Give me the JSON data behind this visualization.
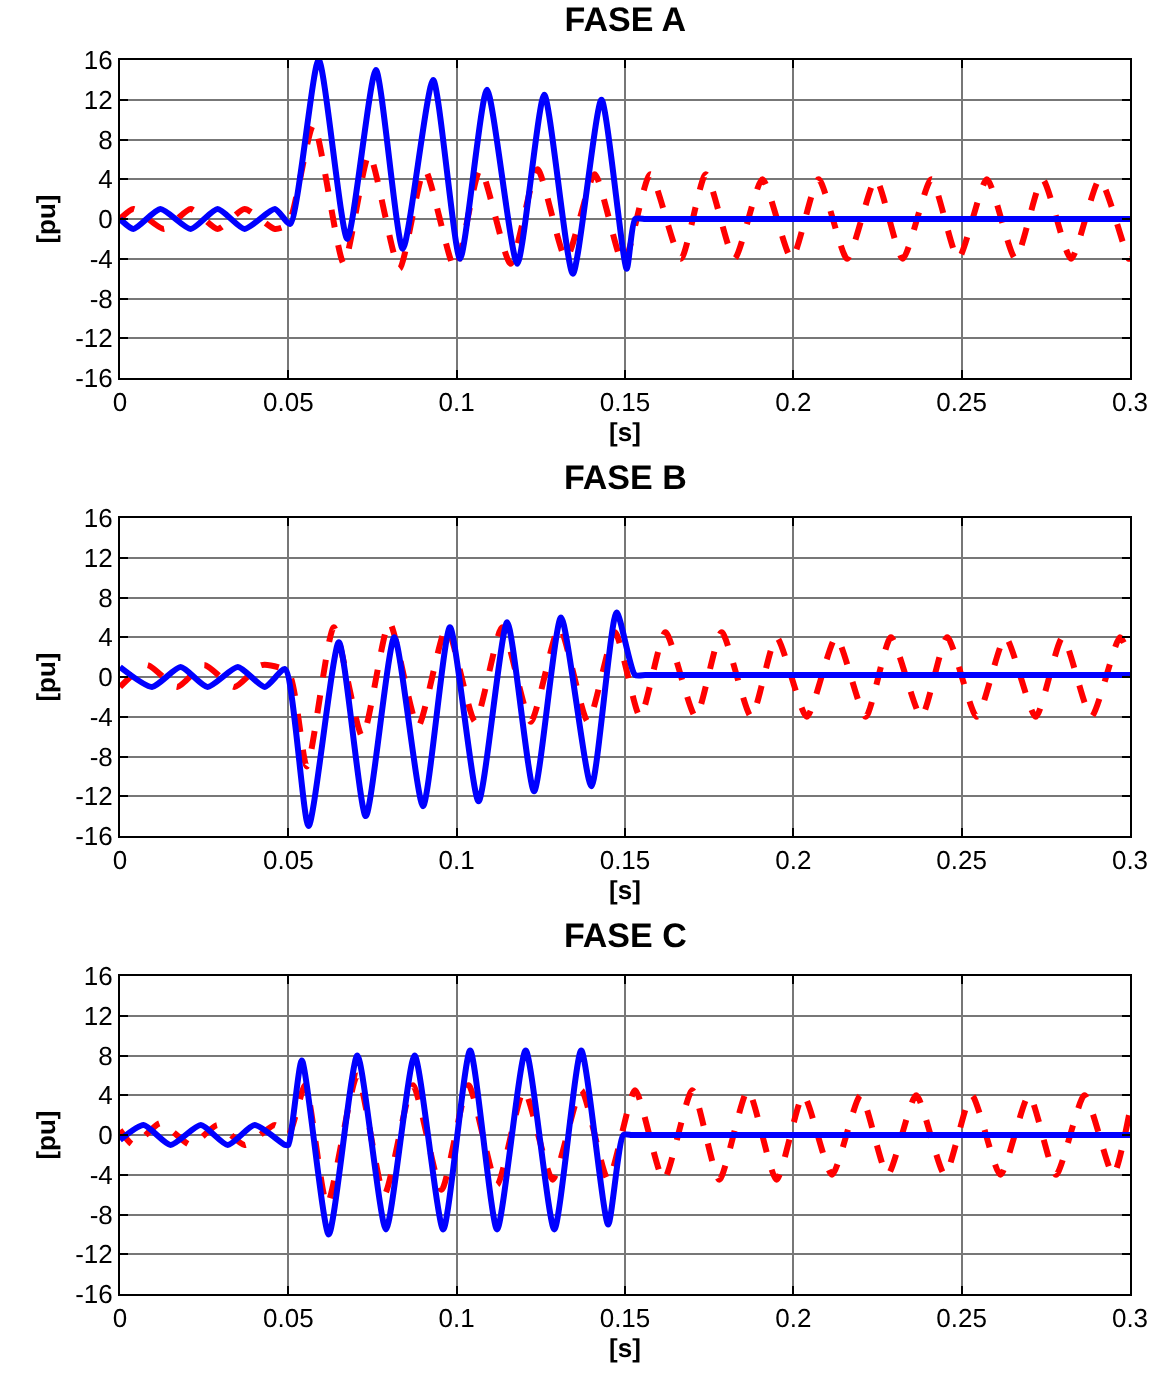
{
  "chart_data": [
    {
      "type": "line",
      "title": "FASE A",
      "xlabel": "[s]",
      "ylabel": "[pu]",
      "xlim": [
        0,
        0.3
      ],
      "xticks": [
        0,
        0.05,
        0.1,
        0.15,
        0.2,
        0.25,
        0.3
      ],
      "ylim": [
        -16,
        16
      ],
      "yticks": [
        -16,
        -12,
        -8,
        -4,
        0,
        4,
        8,
        12,
        16
      ],
      "grid": true,
      "series": [
        {
          "color": "#ff0000",
          "line_style": "dashed",
          "x": [
            0,
            0.004,
            0.013,
            0.021,
            0.029,
            0.037,
            0.046,
            0.05,
            0.0575,
            0.0665,
            0.074,
            0.083,
            0.0905,
            0.0995,
            0.107,
            0.116,
            0.124,
            0.1325,
            0.141,
            0.1495,
            0.1575,
            0.1666,
            0.174,
            0.1825,
            0.1908,
            0.1995,
            0.2075,
            0.216,
            0.2245,
            0.2325,
            0.241,
            0.249,
            0.2575,
            0.266,
            0.274,
            0.2825,
            0.291,
            0.2996,
            0.3
          ],
          "values": [
            0,
            1,
            -1,
            1,
            -1,
            1,
            -1,
            -0.5,
            9.5,
            -4.5,
            6.5,
            -5,
            5,
            -5,
            5,
            -4.5,
            5,
            -4,
            4.5,
            -4.5,
            4.5,
            -4,
            4.5,
            -4,
            4,
            -4,
            4,
            -4,
            4,
            -4,
            4,
            -4,
            4,
            -4,
            4,
            -4,
            4,
            -4,
            -4
          ]
        },
        {
          "color": "#0000ff",
          "line_style": "solid",
          "x": [
            0,
            0.004,
            0.012,
            0.021,
            0.029,
            0.037,
            0.046,
            0.0505,
            0.059,
            0.0675,
            0.076,
            0.084,
            0.093,
            0.101,
            0.109,
            0.118,
            0.126,
            0.1345,
            0.143,
            0.1505,
            0.153,
            0.156,
            0.16,
            0.17,
            0.2,
            0.25,
            0.3
          ],
          "values": [
            0,
            -1,
            1,
            -1,
            1,
            -1,
            1,
            -0.5,
            16,
            -2,
            15,
            -3,
            14,
            -4,
            13,
            -4.5,
            12.5,
            -5.5,
            12,
            -5,
            0,
            0,
            0,
            0,
            0,
            0,
            0
          ]
        }
      ]
    },
    {
      "type": "line",
      "title": "FASE B",
      "xlabel": "[s]",
      "ylabel": "[pu]",
      "xlim": [
        0,
        0.3
      ],
      "xticks": [
        0,
        0.05,
        0.1,
        0.15,
        0.2,
        0.25,
        0.3
      ],
      "ylim": [
        -16,
        16
      ],
      "yticks": [
        -16,
        -12,
        -8,
        -4,
        0,
        4,
        8,
        12,
        16
      ],
      "grid": true,
      "series": [
        {
          "color": "#ff0000",
          "line_style": "dashed",
          "x": [
            0,
            0.008,
            0.017,
            0.025,
            0.034,
            0.042,
            0.05,
            0.0555,
            0.0635,
            0.072,
            0.08,
            0.0885,
            0.097,
            0.1055,
            0.1135,
            0.122,
            0.1305,
            0.139,
            0.147,
            0.1545,
            0.162,
            0.171,
            0.1787,
            0.1875,
            0.195,
            0.204,
            0.2127,
            0.2215,
            0.229,
            0.238,
            0.2457,
            0.2545,
            0.263,
            0.272,
            0.28,
            0.2885,
            0.297,
            0.3
          ],
          "values": [
            -1,
            1.2,
            -1,
            1.2,
            -1,
            1.2,
            0.5,
            -9,
            5,
            -6,
            5.5,
            -5,
            5,
            -4.5,
            5,
            -4.5,
            5,
            -4.5,
            4.5,
            -4,
            4.5,
            -4,
            4.5,
            -4,
            4,
            -4,
            4,
            -4,
            4,
            -4,
            4,
            -4,
            4,
            -4,
            4,
            -4,
            4,
            2
          ]
        },
        {
          "color": "#0000ff",
          "line_style": "solid",
          "x": [
            0,
            0.0095,
            0.018,
            0.026,
            0.035,
            0.043,
            0.049,
            0.056,
            0.065,
            0.073,
            0.0815,
            0.09,
            0.098,
            0.1065,
            0.115,
            0.123,
            0.131,
            0.14,
            0.1475,
            0.153,
            0.156,
            0.16,
            0.17,
            0.2,
            0.25,
            0.3
          ],
          "values": [
            1,
            -1,
            1,
            -1,
            1,
            -1,
            0.8,
            -15,
            3.5,
            -14,
            4,
            -13,
            5,
            -12.5,
            5.5,
            -11.5,
            6,
            -11,
            6.5,
            0.2,
            0.2,
            0.2,
            0.2,
            0.2,
            0.2,
            0.2
          ]
        }
      ]
    },
    {
      "type": "line",
      "title": "FASE C",
      "xlabel": "[s]",
      "ylabel": "[pu]",
      "xlim": [
        0,
        0.3
      ],
      "xticks": [
        0,
        0.05,
        0.1,
        0.15,
        0.2,
        0.25,
        0.3
      ],
      "ylim": [
        -16,
        16
      ],
      "yticks": [
        -16,
        -12,
        -8,
        -4,
        0,
        4,
        8,
        12,
        16
      ],
      "grid": true,
      "series": [
        {
          "color": "#ff0000",
          "line_style": "dashed",
          "x": [
            0,
            0.004,
            0.012,
            0.021,
            0.029,
            0.037,
            0.046,
            0.05,
            0.055,
            0.0615,
            0.0705,
            0.0785,
            0.087,
            0.0955,
            0.1035,
            0.112,
            0.12,
            0.1285,
            0.137,
            0.145,
            0.153,
            0.1615,
            0.17,
            0.178,
            0.1865,
            0.195,
            0.203,
            0.2115,
            0.22,
            0.228,
            0.2365,
            0.245,
            0.253,
            0.2615,
            0.27,
            0.278,
            0.2865,
            0.295,
            0.3
          ],
          "values": [
            0.5,
            -1,
            1.2,
            -1,
            1,
            -1,
            1,
            0,
            5,
            -7,
            6,
            -6,
            5,
            -5.5,
            5,
            -5,
            4.5,
            -4.5,
            4.5,
            -4.5,
            4.5,
            -4.5,
            4.5,
            -4.5,
            4.5,
            -4.5,
            4,
            -4,
            4,
            -4,
            4,
            -4,
            4,
            -4,
            4,
            -4,
            4,
            -4,
            2.5
          ]
        },
        {
          "color": "#0000ff",
          "line_style": "solid",
          "x": [
            0,
            0.007,
            0.015,
            0.024,
            0.032,
            0.04,
            0.049,
            0.05,
            0.054,
            0.062,
            0.0705,
            0.079,
            0.0875,
            0.096,
            0.104,
            0.112,
            0.1205,
            0.129,
            0.137,
            0.145,
            0.1495,
            0.152,
            0.156,
            0.165,
            0.2,
            0.25,
            0.3
          ],
          "values": [
            -0.5,
            1,
            -1,
            1,
            -1,
            1,
            -1,
            -1,
            7.5,
            -10,
            8,
            -9.5,
            8,
            -9.5,
            8.5,
            -9.5,
            8.5,
            -9.5,
            8.5,
            -9,
            0,
            0,
            0,
            0,
            0,
            0,
            0
          ]
        }
      ]
    }
  ]
}
